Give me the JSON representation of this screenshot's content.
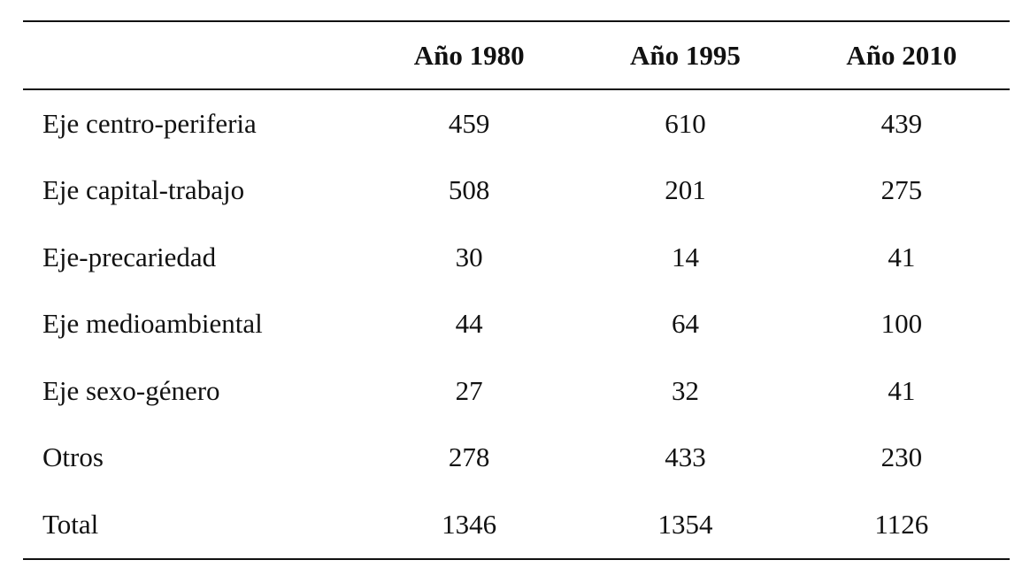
{
  "table": {
    "header": [
      "",
      "Año 1980",
      "Año 1995",
      "Año 2010"
    ],
    "rows": [
      [
        "Eje centro-periferia",
        "459",
        "610",
        "439"
      ],
      [
        "Eje capital-trabajo",
        "508",
        "201",
        "275"
      ],
      [
        "Eje-precariedad",
        "30",
        "14",
        "41"
      ],
      [
        "Eje medioambiental",
        "44",
        "64",
        "100"
      ],
      [
        "Eje sexo-género",
        "27",
        "32",
        "41"
      ],
      [
        "Otros",
        "278",
        "433",
        "230"
      ],
      [
        "Total",
        "1346",
        "1354",
        "1126"
      ]
    ]
  }
}
